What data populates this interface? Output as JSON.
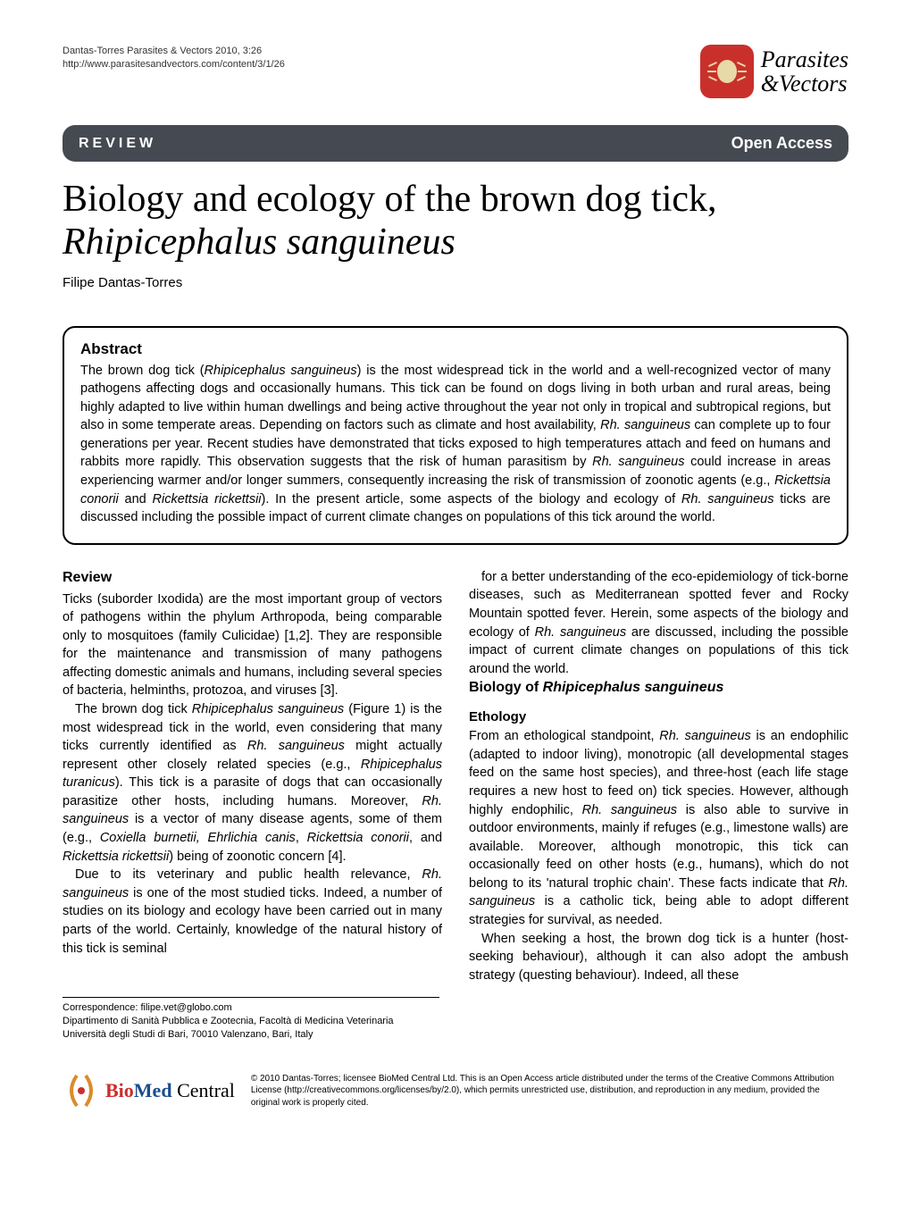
{
  "meta": {
    "running_head": "Dantas-Torres Parasites & Vectors 2010, 3:26",
    "url": "http://www.parasitesandvectors.com/content/3/1/26"
  },
  "journal_logo": {
    "line1": "Parasites",
    "line2": "&Vectors",
    "bg_color": "#c9302c",
    "tick_color": "#e8d9a8"
  },
  "review_bar": {
    "label": "REVIEW",
    "open_access": "Open Access",
    "bg_color": "#454a52",
    "text_color": "#ffffff"
  },
  "title": {
    "plain": "Biology and ecology of the brown dog tick,",
    "italic": "Rhipicephalus sanguineus"
  },
  "author": "Filipe Dantas-Torres",
  "abstract": {
    "heading": "Abstract",
    "text_html": "The brown dog tick (<span class='ital'>Rhipicephalus sanguineus</span>) is the most widespread tick in the world and a well-recognized vector of many pathogens affecting dogs and occasionally humans. This tick can be found on dogs living in both urban and rural areas, being highly adapted to live within human dwellings and being active throughout the year not only in tropical and subtropical regions, but also in some temperate areas. Depending on factors such as climate and host availability, <span class='ital'>Rh. sanguineus</span> can complete up to four generations per year. Recent studies have demonstrated that ticks exposed to high temperatures attach and feed on humans and rabbits more rapidly. This observation suggests that the risk of human parasitism by <span class='ital'>Rh. sanguineus</span> could increase in areas experiencing warmer and/or longer summers, consequently increasing the risk of transmission of zoonotic agents (e.g., <span class='ital'>Rickettsia conorii</span> and <span class='ital'>Rickettsia rickettsii</span>). In the present article, some aspects of the biology and ecology of <span class='ital'>Rh. sanguineus</span> ticks are discussed including the possible impact of current climate changes on populations of this tick around the world."
  },
  "body": {
    "review_heading": "Review",
    "p1_html": "Ticks (suborder Ixodida) are the most important group of vectors of pathogens within the phylum Arthropoda, being comparable only to mosquitoes (family Culicidae) [1,2]. They are responsible for the maintenance and transmission of many pathogens affecting domestic animals and humans, including several species of bacteria, helminths, protozoa, and viruses [3].",
    "p2_html": "The brown dog tick <span class='ital'>Rhipicephalus sanguineus</span> (Figure 1) is the most widespread tick in the world, even considering that many ticks currently identified as <span class='ital'>Rh. sanguineus</span> might actually represent other closely related species (e.g., <span class='ital'>Rhipicephalus turanicus</span>). This tick is a parasite of dogs that can occasionally parasitize other hosts, including humans. Moreover, <span class='ital'>Rh. sanguineus</span> is a vector of many disease agents, some of them (e.g., <span class='ital'>Coxiella burnetii, Ehrlichia canis</span>, <span class='ital'>Rickettsia conorii</span>, and <span class='ital'>Rickettsia rickettsii</span>) being of zoonotic concern [4].",
    "p3_html": "Due to its veterinary and public health relevance, <span class='ital'>Rh. sanguineus</span> is one of the most studied ticks. Indeed, a number of studies on its biology and ecology have been carried out in many parts of the world. Certainly, knowledge of the natural history of this tick is seminal",
    "p4_html": "for a better understanding of the eco-epidemiology of tick-borne diseases, such as Mediterranean spotted fever and Rocky Mountain spotted fever. Herein, some aspects of the biology and ecology of <span class='ital'>Rh. sanguineus</span> are discussed, including the possible impact of current climate changes on populations of this tick around the world.",
    "biology_heading_html": "Biology of <span class='ital'>Rhipicephalus sanguineus</span>",
    "ethology_heading": "Ethology",
    "p5_html": "From an ethological standpoint, <span class='ital'>Rh. sanguineus</span> is an endophilic (adapted to indoor living), monotropic (all developmental stages feed on the same host species), and three-host (each life stage requires a new host to feed on) tick species. However, although highly endophilic, <span class='ital'>Rh. sanguineus</span> is also able to survive in outdoor environments, mainly if refuges (e.g., limestone walls) are available. Moreover, although monotropic, this tick can occasionally feed on other hosts (e.g., humans), which do not belong to its 'natural trophic chain'. These facts indicate that <span class='ital'>Rh. sanguineus</span> is a catholic tick, being able to adopt different strategies for survival, as needed.",
    "p6_html": "When seeking a host, the brown dog tick is a hunter (host-seeking behaviour), although it can also adopt the ambush strategy (questing behaviour). Indeed, all these"
  },
  "correspondence": {
    "email_label": "Correspondence: filipe.vet@globo.com",
    "affiliation": "Dipartimento di Sanità Pubblica e Zootecnia, Facoltà di Medicina Veterinaria Università degli Studi di Bari, 70010 Valenzano, Bari, Italy"
  },
  "footer": {
    "bmc_bio": "Bio",
    "bmc_med": "Med",
    "bmc_central": " Central",
    "license": "© 2010 Dantas-Torres; licensee BioMed Central Ltd. This is an Open Access article distributed under the terms of the Creative Commons Attribution License (http://creativecommons.org/licenses/by/2.0), which permits unrestricted use, distribution, and reproduction in any medium, provided the original work is properly cited.",
    "paren_color": "#d98c2b",
    "dot_color": "#c9302c"
  }
}
